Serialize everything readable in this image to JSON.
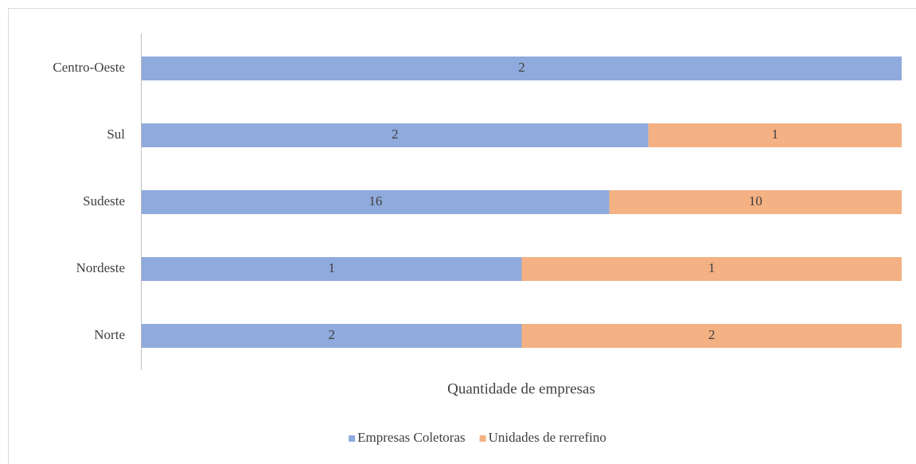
{
  "chart_data": {
    "type": "bar",
    "orientation": "horizontal",
    "stacked": "percent",
    "x_label": "Quantidade de empresas",
    "categories": [
      "Norte",
      "Nordeste",
      "Sudeste",
      "Sul",
      "Centro-Oeste"
    ],
    "series": [
      {
        "name": "Empresas Coletoras",
        "color": "#8faadc",
        "values": [
          2,
          1,
          16,
          2,
          2
        ]
      },
      {
        "name": "Unidades de rerrefino",
        "color": "#f4b183",
        "values": [
          2,
          1,
          10,
          1,
          null
        ]
      }
    ],
    "legend": "bottom"
  }
}
